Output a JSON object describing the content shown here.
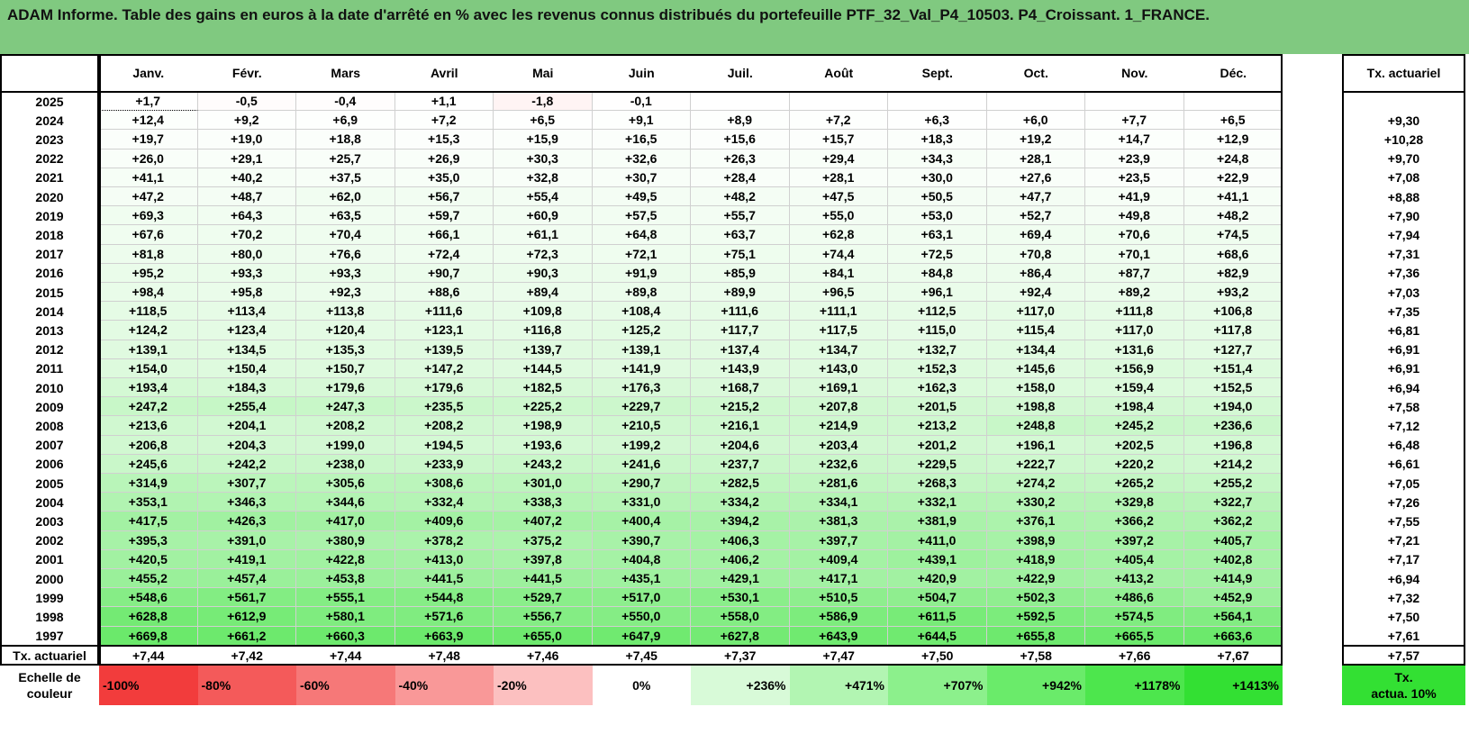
{
  "title": "ADAM Informe. Table des gains en euros à la date d'arrêté en % avec les revenus connus distribués du portefeuille PTF_32_Val_P4_10503. P4_Croissant. 1_FRANCE.",
  "months": [
    "Janv.",
    "Févr.",
    "Mars",
    "Avril",
    "Mai",
    "Juin",
    "Juil.",
    "Août",
    "Sept.",
    "Oct.",
    "Nov.",
    "Déc."
  ],
  "rate_header": "Tx. actuariel",
  "rows": [
    {
      "year": "2025",
      "values": [
        "+1,7",
        "-0,5",
        "-0,4",
        "+1,1",
        "-1,8",
        "-0,1",
        "",
        "",
        "",
        "",
        "",
        ""
      ],
      "rate": ""
    },
    {
      "year": "2024",
      "values": [
        "+12,4",
        "+9,2",
        "+6,9",
        "+7,2",
        "+6,5",
        "+9,1",
        "+8,9",
        "+7,2",
        "+6,3",
        "+6,0",
        "+7,7",
        "+6,5"
      ],
      "rate": "+9,30"
    },
    {
      "year": "2023",
      "values": [
        "+19,7",
        "+19,0",
        "+18,8",
        "+15,3",
        "+15,9",
        "+16,5",
        "+15,6",
        "+15,7",
        "+18,3",
        "+19,2",
        "+14,7",
        "+12,9"
      ],
      "rate": "+10,28"
    },
    {
      "year": "2022",
      "values": [
        "+26,0",
        "+29,1",
        "+25,7",
        "+26,9",
        "+30,3",
        "+32,6",
        "+26,3",
        "+29,4",
        "+34,3",
        "+28,1",
        "+23,9",
        "+24,8"
      ],
      "rate": "+9,70"
    },
    {
      "year": "2021",
      "values": [
        "+41,1",
        "+40,2",
        "+37,5",
        "+35,0",
        "+32,8",
        "+30,7",
        "+28,4",
        "+28,1",
        "+30,0",
        "+27,6",
        "+23,5",
        "+22,9"
      ],
      "rate": "+7,08"
    },
    {
      "year": "2020",
      "values": [
        "+47,2",
        "+48,7",
        "+62,0",
        "+56,7",
        "+55,4",
        "+49,5",
        "+48,2",
        "+47,5",
        "+50,5",
        "+47,7",
        "+41,9",
        "+41,1"
      ],
      "rate": "+8,88"
    },
    {
      "year": "2019",
      "values": [
        "+69,3",
        "+64,3",
        "+63,5",
        "+59,7",
        "+60,9",
        "+57,5",
        "+55,7",
        "+55,0",
        "+53,0",
        "+52,7",
        "+49,8",
        "+48,2"
      ],
      "rate": "+7,90"
    },
    {
      "year": "2018",
      "values": [
        "+67,6",
        "+70,2",
        "+70,4",
        "+66,1",
        "+61,1",
        "+64,8",
        "+63,7",
        "+62,8",
        "+63,1",
        "+69,4",
        "+70,6",
        "+74,5"
      ],
      "rate": "+7,94"
    },
    {
      "year": "2017",
      "values": [
        "+81,8",
        "+80,0",
        "+76,6",
        "+72,4",
        "+72,3",
        "+72,1",
        "+75,1",
        "+74,4",
        "+72,5",
        "+70,8",
        "+70,1",
        "+68,6"
      ],
      "rate": "+7,31"
    },
    {
      "year": "2016",
      "values": [
        "+95,2",
        "+93,3",
        "+93,3",
        "+90,7",
        "+90,3",
        "+91,9",
        "+85,9",
        "+84,1",
        "+84,8",
        "+86,4",
        "+87,7",
        "+82,9"
      ],
      "rate": "+7,36"
    },
    {
      "year": "2015",
      "values": [
        "+98,4",
        "+95,8",
        "+92,3",
        "+88,6",
        "+89,4",
        "+89,8",
        "+89,9",
        "+96,5",
        "+96,1",
        "+92,4",
        "+89,2",
        "+93,2"
      ],
      "rate": "+7,03"
    },
    {
      "year": "2014",
      "values": [
        "+118,5",
        "+113,4",
        "+113,8",
        "+111,6",
        "+109,8",
        "+108,4",
        "+111,6",
        "+111,1",
        "+112,5",
        "+117,0",
        "+111,8",
        "+106,8"
      ],
      "rate": "+7,35"
    },
    {
      "year": "2013",
      "values": [
        "+124,2",
        "+123,4",
        "+120,4",
        "+123,1",
        "+116,8",
        "+125,2",
        "+117,7",
        "+117,5",
        "+115,0",
        "+115,4",
        "+117,0",
        "+117,8"
      ],
      "rate": "+6,81"
    },
    {
      "year": "2012",
      "values": [
        "+139,1",
        "+134,5",
        "+135,3",
        "+139,5",
        "+139,7",
        "+139,1",
        "+137,4",
        "+134,7",
        "+132,7",
        "+134,4",
        "+131,6",
        "+127,7"
      ],
      "rate": "+6,91"
    },
    {
      "year": "2011",
      "values": [
        "+154,0",
        "+150,4",
        "+150,7",
        "+147,2",
        "+144,5",
        "+141,9",
        "+143,9",
        "+143,0",
        "+152,3",
        "+145,6",
        "+156,9",
        "+151,4"
      ],
      "rate": "+6,91"
    },
    {
      "year": "2010",
      "values": [
        "+193,4",
        "+184,3",
        "+179,6",
        "+179,6",
        "+182,5",
        "+176,3",
        "+168,7",
        "+169,1",
        "+162,3",
        "+158,0",
        "+159,4",
        "+152,5"
      ],
      "rate": "+6,94"
    },
    {
      "year": "2009",
      "values": [
        "+247,2",
        "+255,4",
        "+247,3",
        "+235,5",
        "+225,2",
        "+229,7",
        "+215,2",
        "+207,8",
        "+201,5",
        "+198,8",
        "+198,4",
        "+194,0"
      ],
      "rate": "+7,58"
    },
    {
      "year": "2008",
      "values": [
        "+213,6",
        "+204,1",
        "+208,2",
        "+208,2",
        "+198,9",
        "+210,5",
        "+216,1",
        "+214,9",
        "+213,2",
        "+248,8",
        "+245,2",
        "+236,6"
      ],
      "rate": "+7,12"
    },
    {
      "year": "2007",
      "values": [
        "+206,8",
        "+204,3",
        "+199,0",
        "+194,5",
        "+193,6",
        "+199,2",
        "+204,6",
        "+203,4",
        "+201,2",
        "+196,1",
        "+202,5",
        "+196,8"
      ],
      "rate": "+6,48"
    },
    {
      "year": "2006",
      "values": [
        "+245,6",
        "+242,2",
        "+238,0",
        "+233,9",
        "+243,2",
        "+241,6",
        "+237,7",
        "+232,6",
        "+229,5",
        "+222,7",
        "+220,2",
        "+214,2"
      ],
      "rate": "+6,61"
    },
    {
      "year": "2005",
      "values": [
        "+314,9",
        "+307,7",
        "+305,6",
        "+308,6",
        "+301,0",
        "+290,7",
        "+282,5",
        "+281,6",
        "+268,3",
        "+274,2",
        "+265,2",
        "+255,2"
      ],
      "rate": "+7,05"
    },
    {
      "year": "2004",
      "values": [
        "+353,1",
        "+346,3",
        "+344,6",
        "+332,4",
        "+338,3",
        "+331,0",
        "+334,2",
        "+334,1",
        "+332,1",
        "+330,2",
        "+329,8",
        "+322,7"
      ],
      "rate": "+7,26"
    },
    {
      "year": "2003",
      "values": [
        "+417,5",
        "+426,3",
        "+417,0",
        "+409,6",
        "+407,2",
        "+400,4",
        "+394,2",
        "+381,3",
        "+381,9",
        "+376,1",
        "+366,2",
        "+362,2"
      ],
      "rate": "+7,55"
    },
    {
      "year": "2002",
      "values": [
        "+395,3",
        "+391,0",
        "+380,9",
        "+378,2",
        "+375,2",
        "+390,7",
        "+406,3",
        "+397,7",
        "+411,0",
        "+398,9",
        "+397,2",
        "+405,7"
      ],
      "rate": "+7,21"
    },
    {
      "year": "2001",
      "values": [
        "+420,5",
        "+419,1",
        "+422,8",
        "+413,0",
        "+397,8",
        "+404,8",
        "+406,2",
        "+409,4",
        "+439,1",
        "+418,9",
        "+405,4",
        "+402,8"
      ],
      "rate": "+7,17"
    },
    {
      "year": "2000",
      "values": [
        "+455,2",
        "+457,4",
        "+453,8",
        "+441,5",
        "+441,5",
        "+435,1",
        "+429,1",
        "+417,1",
        "+420,9",
        "+422,9",
        "+413,2",
        "+414,9"
      ],
      "rate": "+6,94"
    },
    {
      "year": "1999",
      "values": [
        "+548,6",
        "+561,7",
        "+555,1",
        "+544,8",
        "+529,7",
        "+517,0",
        "+530,1",
        "+510,5",
        "+504,7",
        "+502,3",
        "+486,6",
        "+452,9"
      ],
      "rate": "+7,32"
    },
    {
      "year": "1998",
      "values": [
        "+628,8",
        "+612,9",
        "+580,1",
        "+571,6",
        "+556,7",
        "+550,0",
        "+558,0",
        "+586,9",
        "+611,5",
        "+592,5",
        "+574,5",
        "+564,1"
      ],
      "rate": "+7,50"
    },
    {
      "year": "1997",
      "values": [
        "+669,8",
        "+661,2",
        "+660,3",
        "+663,9",
        "+655,0",
        "+647,9",
        "+627,8",
        "+643,9",
        "+644,5",
        "+655,8",
        "+665,5",
        "+663,6"
      ],
      "rate": "+7,61"
    }
  ],
  "summary_row": {
    "label": "Tx. actuariel",
    "values": [
      "+7,44",
      "+7,42",
      "+7,44",
      "+7,48",
      "+7,46",
      "+7,45",
      "+7,37",
      "+7,47",
      "+7,50",
      "+7,58",
      "+7,66",
      "+7,67"
    ],
    "rate": "+7,57"
  },
  "color_scale": {
    "label_line1": "Echelle de",
    "label_line2": "couleur",
    "items": [
      {
        "label": "-100%",
        "color": "#f23c3c",
        "align": "left"
      },
      {
        "label": "-80%",
        "color": "#f45a5a",
        "align": "left"
      },
      {
        "label": "-60%",
        "color": "#f67878",
        "align": "left"
      },
      {
        "label": "-40%",
        "color": "#f99898",
        "align": "left"
      },
      {
        "label": "-20%",
        "color": "#fcc0c0",
        "align": "left"
      },
      {
        "label": "0%",
        "color": "#ffffff",
        "align": "center"
      },
      {
        "label": "+236%",
        "color": "#d8fad8",
        "align": "right"
      },
      {
        "label": "+471%",
        "color": "#b2f5b2",
        "align": "right"
      },
      {
        "label": "+707%",
        "color": "#8cf08c",
        "align": "right"
      },
      {
        "label": "+942%",
        "color": "#6aeb6a",
        "align": "right"
      },
      {
        "label": "+1178%",
        "color": "#4de64d",
        "align": "right"
      },
      {
        "label": "+1413%",
        "color": "#33e033",
        "align": "right"
      }
    ],
    "rate_label_line1": "Tx.",
    "rate_label_line2": "actua. 10%",
    "rate_color": "#33e033"
  }
}
